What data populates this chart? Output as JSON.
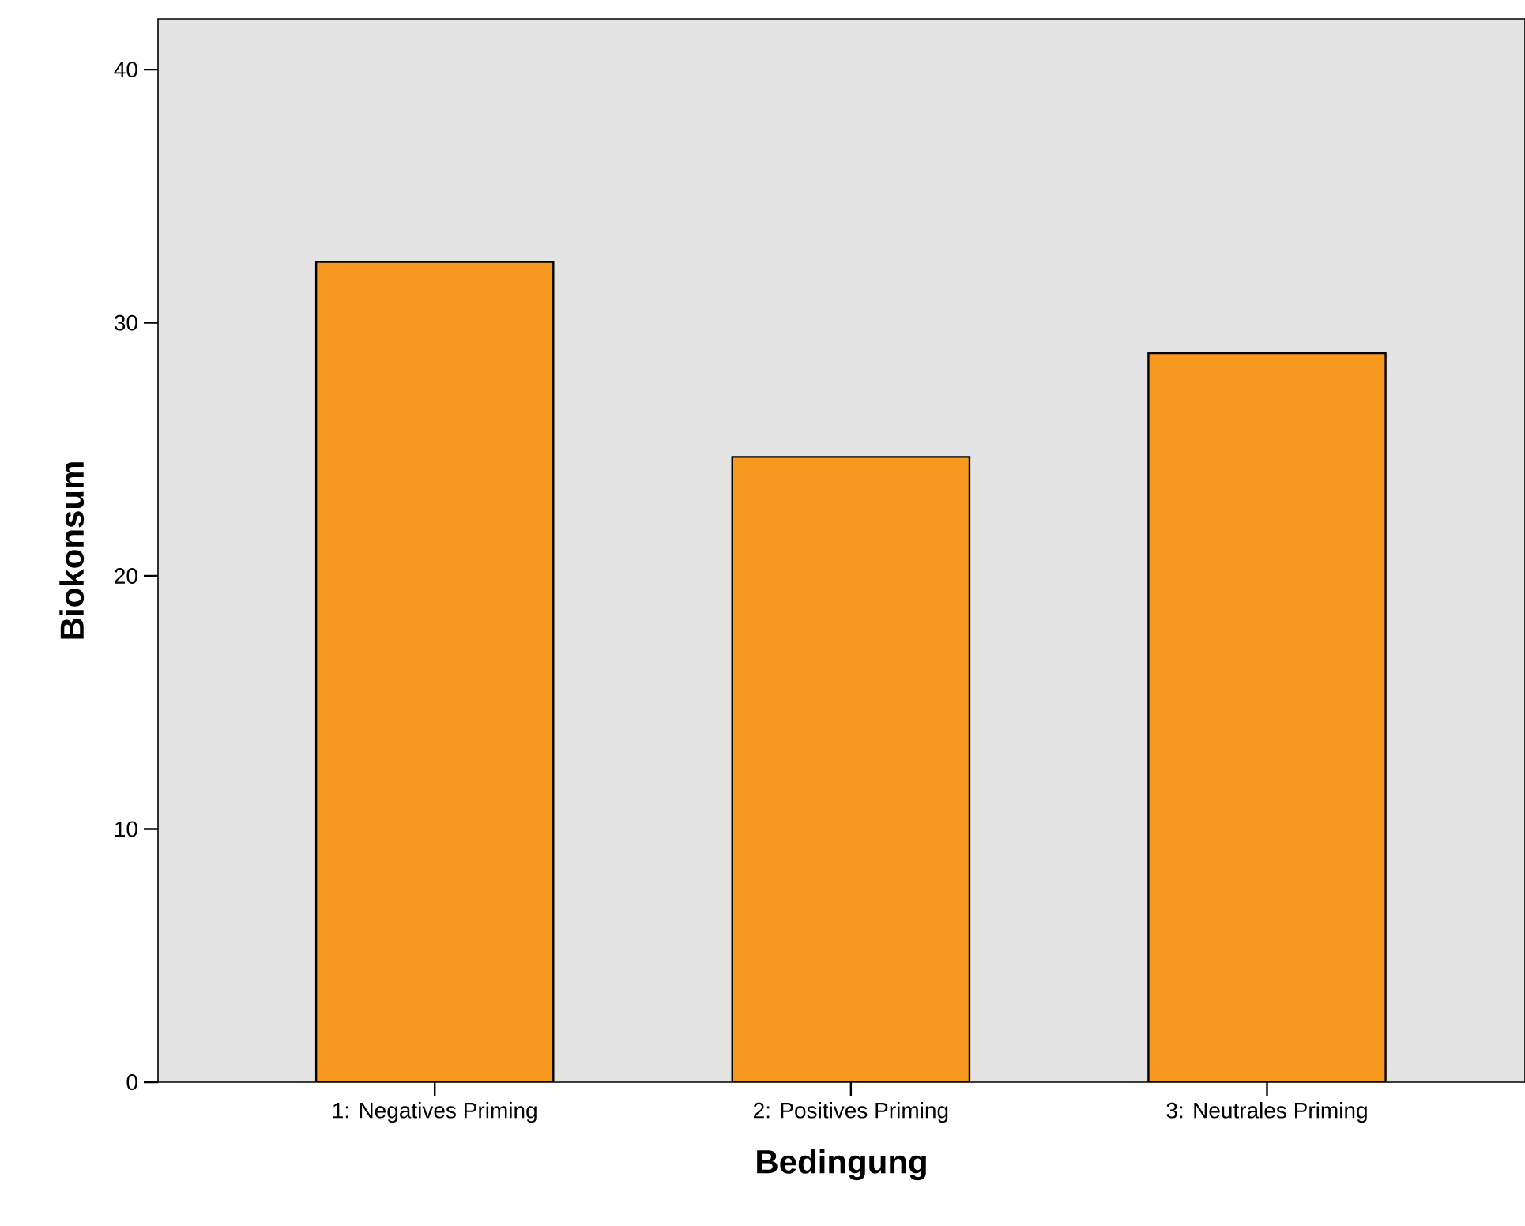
{
  "chart_data": {
    "type": "bar",
    "xlabel": "Bedingung",
    "ylabel": "Biokonsum",
    "categories": [
      "1: Negatives Priming",
      "2: Positives Priming",
      "3: Neutrales Priming"
    ],
    "values": [
      32.4,
      24.7,
      28.8
    ],
    "color": "#f7991f",
    "ylim": [
      0,
      42
    ],
    "yticks": [
      0,
      10,
      20,
      30,
      40
    ],
    "grid": false
  }
}
